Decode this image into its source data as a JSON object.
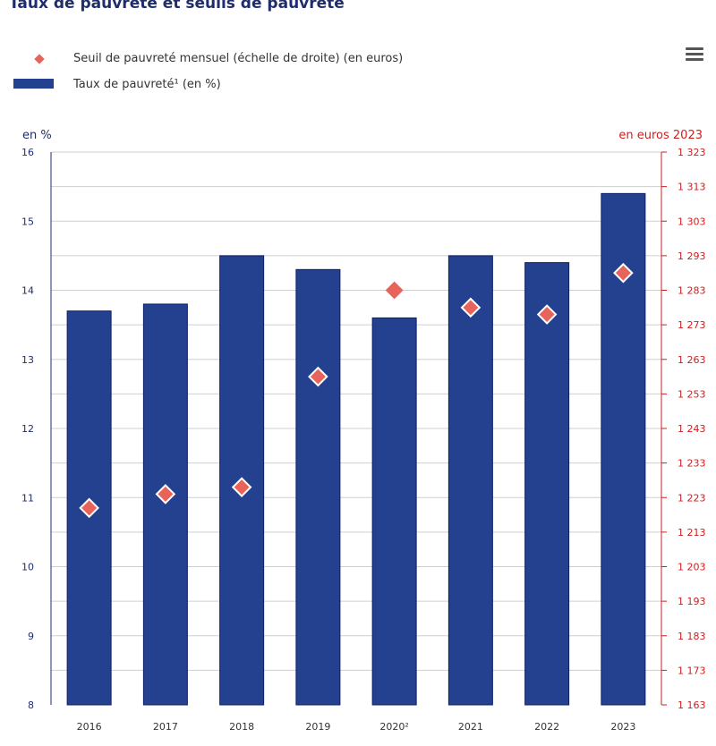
{
  "title": "Taux de pauvreté et seuils de pauvreté",
  "menu_icon": "hamburger-menu-icon",
  "chart_data": {
    "type": "bar",
    "title": "Taux de pauvreté et seuils de pauvreté",
    "categories": [
      "2016",
      "2017",
      "2018",
      "2019",
      "2020²",
      "2021",
      "2022",
      "2023"
    ],
    "series": [
      {
        "name": "Taux de pauvreté¹ (en %)",
        "type": "bar",
        "axis": "left",
        "color": "#23418f",
        "values": [
          13.7,
          13.8,
          14.5,
          14.3,
          13.6,
          14.5,
          14.4,
          15.4
        ]
      },
      {
        "name": "Seuil de pauvreté mensuel (échelle de droite) (en euros)",
        "type": "scatter",
        "marker": "diamond",
        "axis": "right",
        "color": "#e8635a",
        "values": [
          1220,
          1224,
          1226,
          1258,
          1283,
          1278,
          1276,
          1288
        ]
      }
    ],
    "ylabel_left": "en %",
    "ylabel_right": "en euros 2023",
    "ylim_left": [
      8,
      16
    ],
    "ylim_right": [
      1163,
      1323
    ],
    "yticks_left": [
      "8",
      "9",
      "10",
      "11",
      "12",
      "13",
      "14",
      "15",
      "16"
    ],
    "yticks_right": [
      "1 163",
      "1 173",
      "1 183",
      "1 193",
      "1 203",
      "1 213",
      "1 223",
      "1 233",
      "1 243",
      "1 253",
      "1 263",
      "1 273",
      "1 283",
      "1 293",
      "1 303",
      "1 313",
      "1 323"
    ],
    "legend_position": "top-left",
    "grid": true
  }
}
